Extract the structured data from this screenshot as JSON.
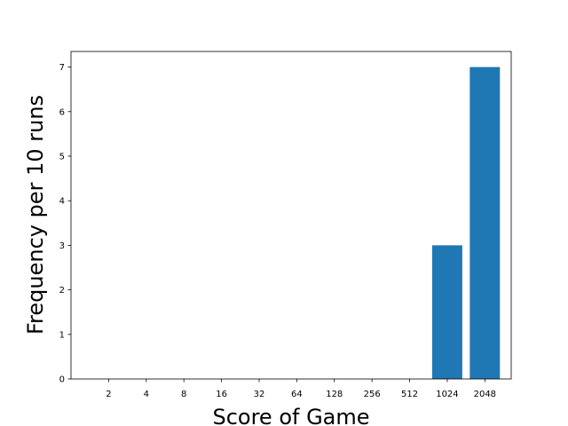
{
  "chart_data": {
    "type": "bar",
    "title": "",
    "xlabel": "Score of Game",
    "ylabel": "Frequency per 10 runs",
    "categories": [
      "2",
      "4",
      "8",
      "16",
      "32",
      "64",
      "128",
      "256",
      "512",
      "1024",
      "2048"
    ],
    "values": [
      0,
      0,
      0,
      0,
      0,
      0,
      0,
      0,
      0,
      3,
      7
    ],
    "ylim": [
      0,
      7.35
    ],
    "yticks": [
      0,
      1,
      2,
      3,
      4,
      5,
      6,
      7
    ],
    "grid": false,
    "colors": {
      "bar": "#1f77b4",
      "axis": "#000000"
    }
  }
}
